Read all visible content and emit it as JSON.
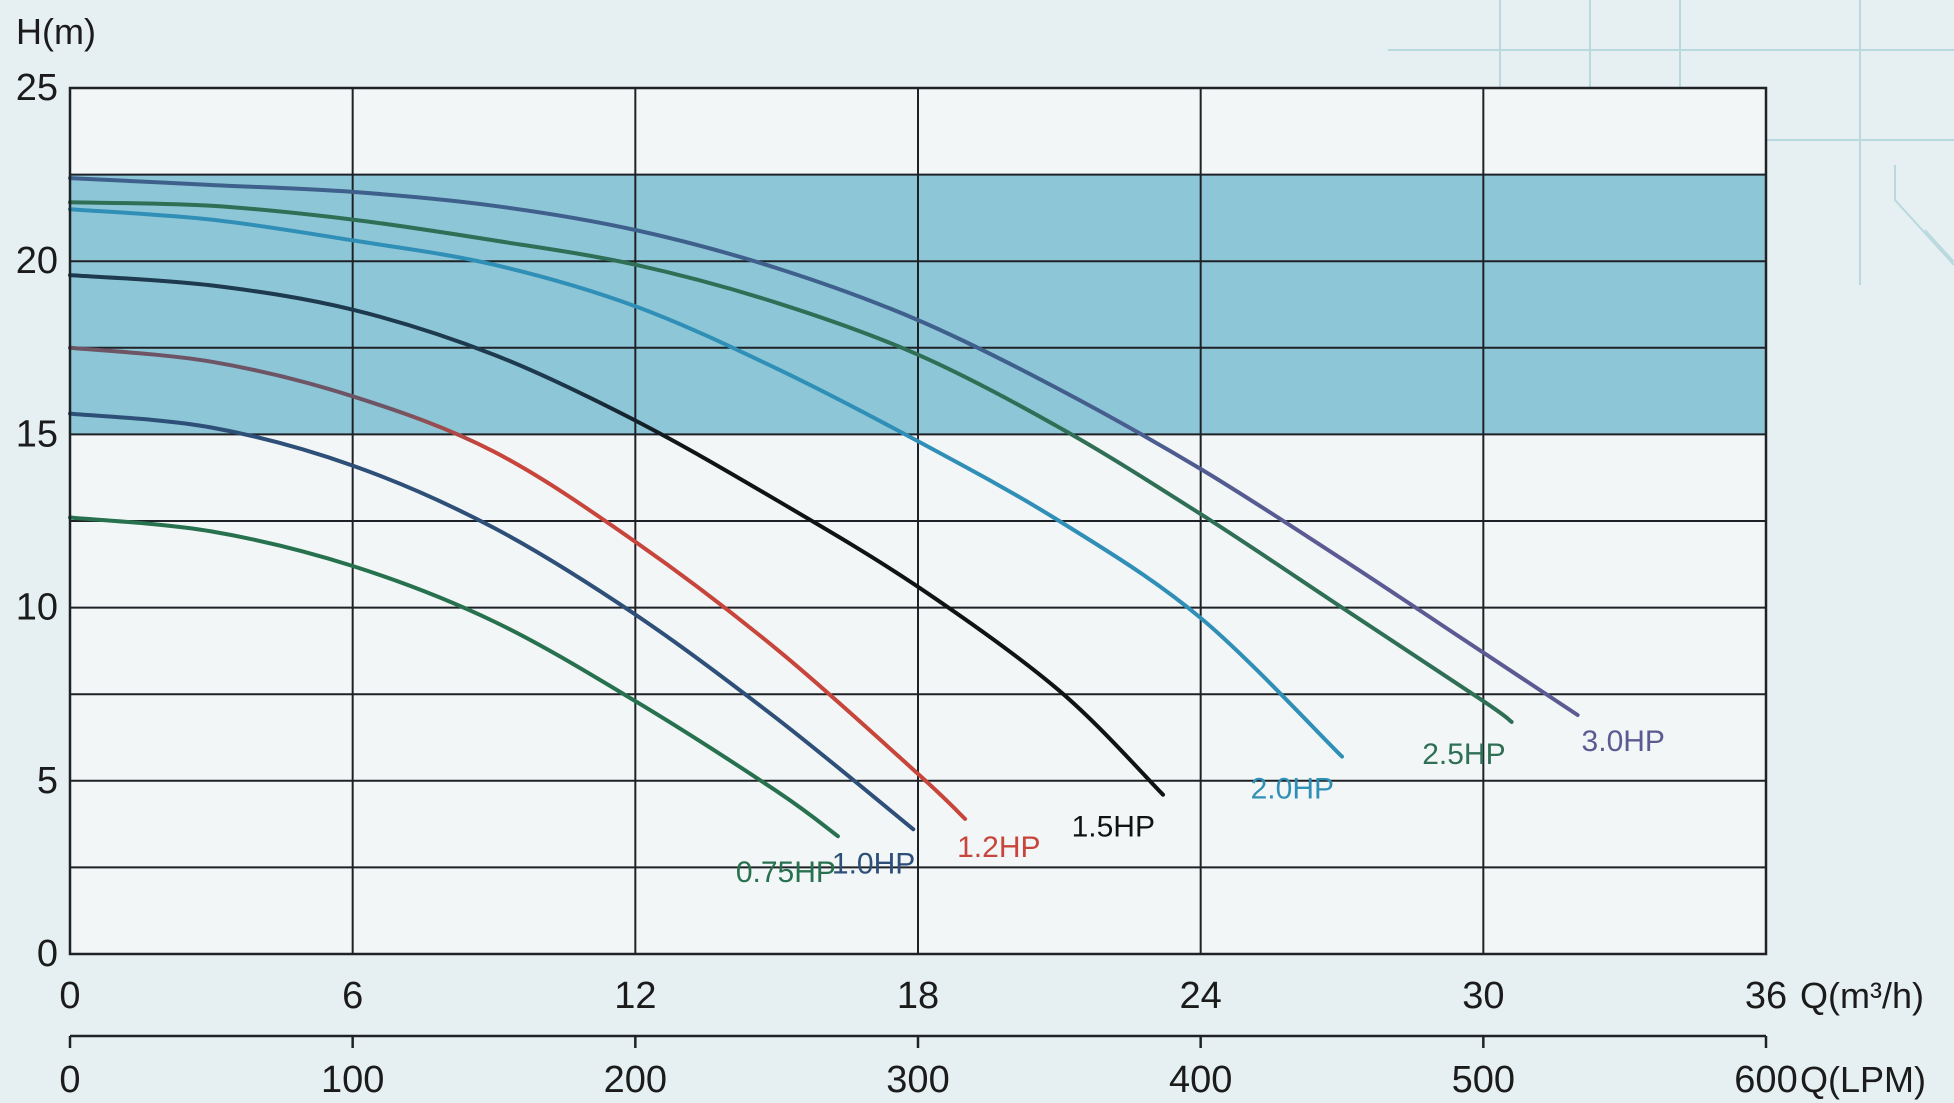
{
  "chart_data": {
    "type": "line",
    "title": "",
    "ylabel": "H(m)",
    "xlabel": "Q(m³/h)",
    "x2label": "Q(LPM)",
    "xlim": [
      0,
      36
    ],
    "ylim": [
      0,
      25
    ],
    "x_ticks": [
      0,
      6,
      12,
      18,
      24,
      30,
      36
    ],
    "x2_ticks": [
      0,
      100,
      200,
      300,
      400,
      500,
      600
    ],
    "y_ticks": [
      0,
      5,
      10,
      15,
      20,
      25
    ],
    "y_grid_step": 2.5,
    "grid": true,
    "band": {
      "y_from": 15,
      "y_to": 22.5,
      "color": "#8dc6d6"
    },
    "series": [
      {
        "name": "0.75HP",
        "color": "#27714f",
        "x": [
          0,
          3,
          6,
          9,
          12,
          15,
          16.3
        ],
        "y": [
          12.6,
          12.2,
          11.2,
          9.6,
          7.3,
          4.7,
          3.4
        ]
      },
      {
        "name": "1.0HP",
        "color": "#2d4f78",
        "x": [
          0,
          3,
          6,
          9,
          12,
          15,
          17.9
        ],
        "y": [
          15.6,
          15.2,
          14.1,
          12.3,
          9.8,
          6.8,
          3.6
        ]
      },
      {
        "name": "1.2HP",
        "color": "#c7453b",
        "segments": [
          {
            "x_to": 8,
            "color": "#6e5565"
          }
        ],
        "x": [
          0,
          3,
          6,
          9,
          12,
          15,
          18,
          19
        ],
        "y": [
          17.5,
          17.1,
          16.1,
          14.5,
          11.9,
          8.8,
          5.2,
          3.9
        ]
      },
      {
        "name": "1.5HP",
        "color": "#101214",
        "segments": [
          {
            "x_to": 12,
            "color": "#1d3a4e"
          }
        ],
        "x": [
          0,
          3,
          6,
          9,
          12,
          15,
          18,
          21,
          23.2
        ],
        "y": [
          19.6,
          19.3,
          18.6,
          17.3,
          15.4,
          13.1,
          10.6,
          7.6,
          4.6
        ]
      },
      {
        "name": "2.0HP",
        "color": "#2f8fb7",
        "x": [
          0,
          3,
          6,
          9,
          12,
          15,
          18,
          21,
          24,
          27
        ],
        "y": [
          21.5,
          21.2,
          20.6,
          19.9,
          18.7,
          16.9,
          14.8,
          12.5,
          9.7,
          5.7
        ]
      },
      {
        "name": "2.5HP",
        "color": "#2f6f55",
        "x": [
          0,
          3,
          6,
          9,
          12,
          15,
          18,
          21,
          24,
          27,
          30,
          30.6
        ],
        "y": [
          21.7,
          21.6,
          21.2,
          20.6,
          19.9,
          18.8,
          17.3,
          15.2,
          12.7,
          10.0,
          7.3,
          6.7
        ]
      },
      {
        "name": "3.0HP",
        "color": "#5c5a93",
        "segments": [
          {
            "x_to": 24,
            "color": "#3f5f8c"
          }
        ],
        "x": [
          0,
          3,
          6,
          9,
          12,
          15,
          18,
          21,
          24,
          27,
          30,
          32
        ],
        "y": [
          22.4,
          22.2,
          22.0,
          21.6,
          20.9,
          19.8,
          18.3,
          16.3,
          14.0,
          11.4,
          8.7,
          6.9
        ]
      }
    ]
  }
}
